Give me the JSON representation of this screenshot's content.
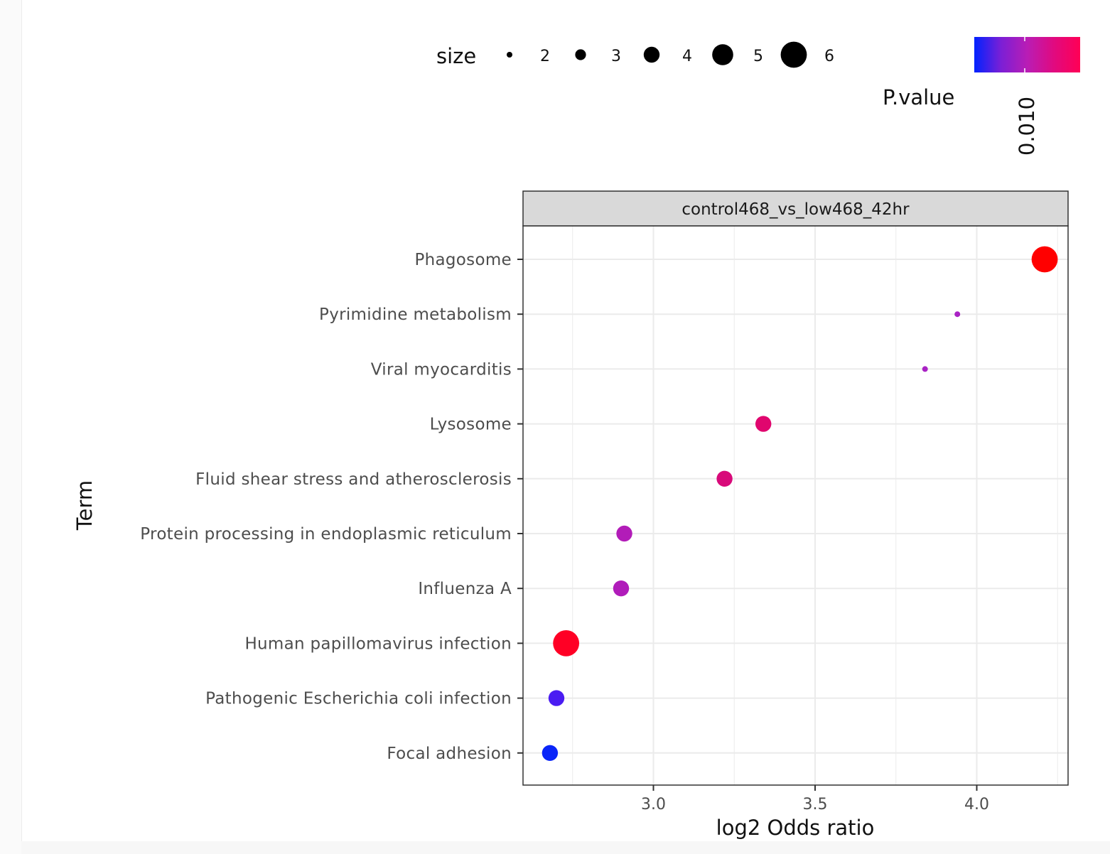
{
  "chart_data": {
    "type": "scatter",
    "facet_label": "control468_vs_low468_42hr",
    "xlabel": "log2 Odds ratio",
    "ylabel": "Term",
    "xlim": [
      2.6,
      4.3
    ],
    "x_ticks": [
      3.0,
      3.5,
      4.0
    ],
    "x_tick_labels": [
      "3.0",
      "3.5",
      "4.0"
    ],
    "grid": true,
    "points": [
      {
        "term": "Phagosome",
        "x": 4.21,
        "size": 6,
        "color": "#ff0000"
      },
      {
        "term": "Pyrimidine metabolism",
        "x": 3.94,
        "size": 2,
        "color": "#a922c4"
      },
      {
        "term": "Viral myocarditis",
        "x": 3.84,
        "size": 2,
        "color": "#a922c4"
      },
      {
        "term": "Lysosome",
        "x": 3.34,
        "size": 4,
        "color": "#e0066e"
      },
      {
        "term": "Fluid shear stress and atherosclerosis",
        "x": 3.22,
        "size": 4,
        "color": "#d80a7a"
      },
      {
        "term": "Protein processing in endoplasmic reticulum",
        "x": 2.91,
        "size": 4,
        "color": "#b21cb8"
      },
      {
        "term": "Influenza A",
        "x": 2.9,
        "size": 4,
        "color": "#b01cba"
      },
      {
        "term": "Human papillomavirus infection",
        "x": 2.73,
        "size": 6,
        "color": "#ff0025"
      },
      {
        "term": "Pathogenic Escherichia coli infection",
        "x": 2.7,
        "size": 4,
        "color": "#4a1cf2"
      },
      {
        "term": "Focal adhesion",
        "x": 2.68,
        "size": 4,
        "color": "#0a25f8"
      }
    ],
    "size_legend": {
      "title": "size",
      "values": [
        2,
        3,
        4,
        5,
        6
      ],
      "labels": [
        "2",
        "3",
        "4",
        "5",
        "6"
      ]
    },
    "color_legend": {
      "title": "P.value",
      "tick_label": "0.010",
      "gradient": [
        "#0022ff",
        "#7a1fd6",
        "#b91db5",
        "#e00a80",
        "#ff0055"
      ]
    }
  }
}
